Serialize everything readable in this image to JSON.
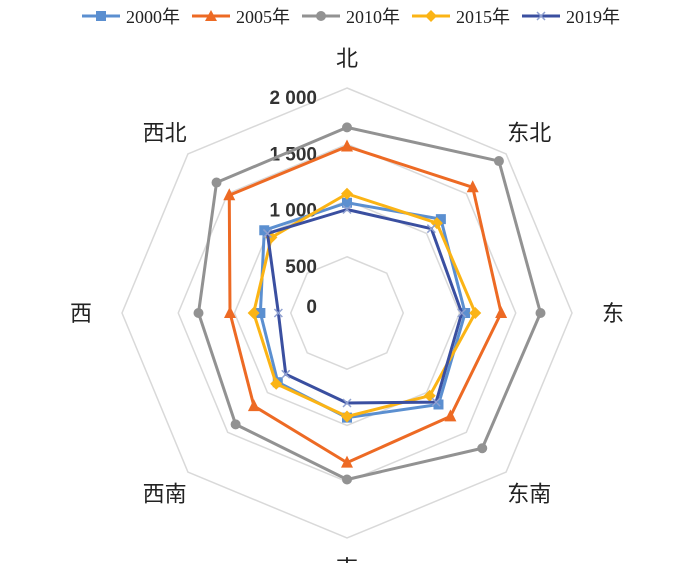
{
  "chart_data": {
    "type": "radar",
    "categories": [
      "北",
      "东北",
      "东",
      "东南",
      "南",
      "西南",
      "西",
      "西北"
    ],
    "ticks": [
      "0",
      "500",
      "1000",
      "1500",
      "2000"
    ],
    "rlim": [
      0,
      2000
    ],
    "grid": true,
    "legend_position": "top",
    "series": [
      {
        "name": "2000年",
        "color": "#5b8fd0",
        "marker": "square",
        "values": [
          980,
          1180,
          1050,
          1150,
          930,
          870,
          770,
          1040
        ]
      },
      {
        "name": "2005年",
        "color": "#ed6a24",
        "marker": "triangle",
        "values": [
          1480,
          1580,
          1370,
          1300,
          1330,
          1170,
          1040,
          1480
        ]
      },
      {
        "name": "2010年",
        "color": "#929292",
        "marker": "circle",
        "values": [
          1650,
          1910,
          1720,
          1700,
          1480,
          1400,
          1320,
          1640
        ]
      },
      {
        "name": "2015年",
        "color": "#fbb415",
        "marker": "diamond",
        "values": [
          1060,
          1130,
          1140,
          1040,
          920,
          890,
          830,
          950
        ]
      },
      {
        "name": "2019年",
        "color": "#3a4fa0",
        "marker": "x",
        "values": [
          920,
          1060,
          1020,
          1120,
          800,
          770,
          610,
          1000
        ]
      }
    ]
  }
}
